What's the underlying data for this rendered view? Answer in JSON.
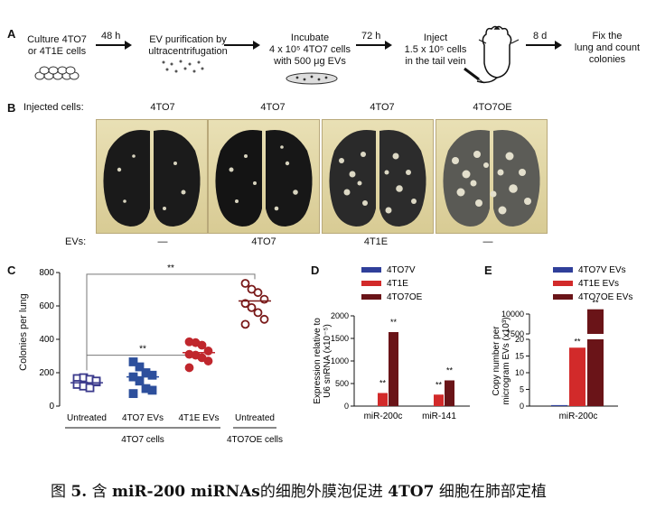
{
  "panelA": {
    "letter": "A",
    "steps": [
      "Culture 4TO7\nor 4T1E cells",
      "EV purification by\nultracentrifugation",
      "Incubate\n4 x 10⁵ 4TO7 cells\nwith 500 μg EVs",
      "Inject\n1.5 x 10⁵ cells\nin the tail vein",
      "Fix the\nlung and count\ncolonies"
    ],
    "arrows": [
      "48 h",
      "",
      "72 h",
      "",
      "8 d"
    ]
  },
  "panelB": {
    "letter": "B",
    "injected_label": "Injected cells:",
    "evs_label": "EVs:",
    "images": [
      {
        "cells": "4TO7",
        "evs": "—"
      },
      {
        "cells": "4TO7",
        "evs": "4TO7"
      },
      {
        "cells": "4TO7",
        "evs": "4T1E"
      },
      {
        "cells": "4TO7OE",
        "evs": "—"
      }
    ]
  },
  "panelC": {
    "letter": "C",
    "chart_data": {
      "type": "scatter",
      "ylabel": "Colonies per lung",
      "ylim": [
        0,
        800
      ],
      "yticks": [
        "0",
        "200",
        "400",
        "600",
        "800"
      ],
      "groups": [
        {
          "label": "Untreated",
          "color": "#3b3a8c",
          "marker": "square-open",
          "mean": 140,
          "points": [
            165,
            170,
            160,
            145,
            130,
            120,
            110,
            150
          ]
        },
        {
          "label": "4TO7 EVs",
          "color": "#2d4f9c",
          "marker": "square",
          "mean": 175,
          "points": [
            265,
            235,
            200,
            185,
            175,
            150,
            105,
            95,
            75
          ]
        },
        {
          "label": "4T1E EVs",
          "color": "#c0272d",
          "marker": "circle",
          "mean": 320,
          "points": [
            385,
            380,
            365,
            330,
            310,
            305,
            290,
            270,
            230
          ]
        },
        {
          "label": "Untreated",
          "color": "#7a1a1a",
          "marker": "circle-open",
          "mean": 630,
          "points": [
            735,
            700,
            680,
            640,
            615,
            590,
            560,
            520,
            490
          ]
        }
      ],
      "group_labels_bottom": [
        "4TO7 cells",
        "4TO7OE cells"
      ],
      "significance": "**"
    }
  },
  "panelD": {
    "letter": "D",
    "chart_data": {
      "type": "bar",
      "ylabel": "Expression relative to\nU6 snRNA (x10⁻⁵)",
      "ylim": [
        0,
        2000
      ],
      "yticks": [
        "0",
        "500",
        "1000",
        "1500",
        "2000"
      ],
      "categories": [
        "miR-200c",
        "miR-141"
      ],
      "series": [
        {
          "name": "4TO7V",
          "color": "#2f3f9a",
          "values": [
            0,
            0
          ]
        },
        {
          "name": "4T1E",
          "color": "#d22a2a",
          "values": [
            290,
            255
          ]
        },
        {
          "name": "4TO7OE",
          "color": "#6a1418",
          "values": [
            1640,
            570
          ]
        }
      ],
      "significance": "**"
    }
  },
  "panelE": {
    "letter": "E",
    "chart_data": {
      "type": "bar",
      "ylabel": "Copy number per\nmicrogram EVs (x10³)",
      "yticks_lower": [
        "0",
        "5",
        "10",
        "15",
        "20"
      ],
      "yticks_upper": [
        "7500",
        "10000"
      ],
      "categories": [
        "miR-200c"
      ],
      "series": [
        {
          "name": "4TO7V EVs",
          "color": "#2f3f9a",
          "values": [
            0.3
          ]
        },
        {
          "name": "4T1E EVs",
          "color": "#d22a2a",
          "values": [
            17.5
          ]
        },
        {
          "name": "4TO7OE EVs",
          "color": "#6a1418",
          "values": [
            10600
          ]
        }
      ],
      "significance": "**"
    }
  },
  "caption": {
    "prefix": "图",
    "number": "5.",
    "text1": "含",
    "bold1": "miR-200 miRNAs",
    "text2": "的细胞外膜泡促进",
    "bold2": "4TO7",
    "text3": "细胞在肺部定植"
  }
}
